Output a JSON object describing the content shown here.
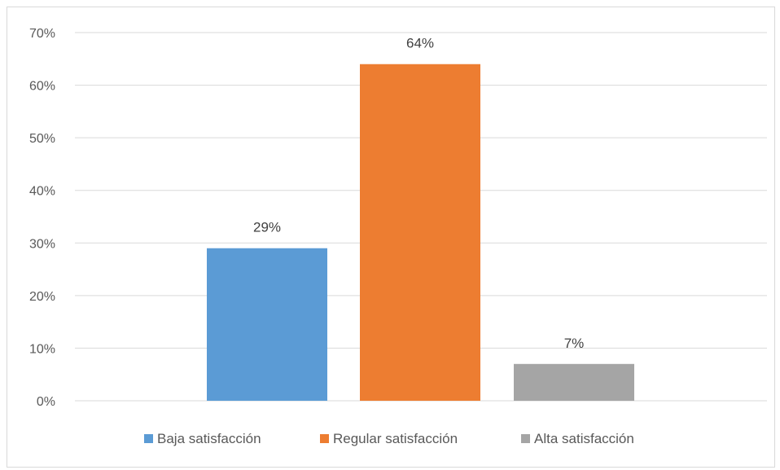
{
  "chart_data": {
    "type": "bar",
    "categories": [
      "Baja satisfacción",
      "Regular satisfacción",
      "Alta satisfacción"
    ],
    "values": [
      29,
      64,
      7
    ],
    "data_labels": [
      "29%",
      "64%",
      "7%"
    ],
    "colors": [
      "#5b9bd5",
      "#ed7d31",
      "#a5a5a5"
    ],
    "ylim": [
      0,
      70
    ],
    "y_ticks": [
      0,
      10,
      20,
      30,
      40,
      50,
      60,
      70
    ],
    "y_tick_labels": [
      "0%",
      "10%",
      "20%",
      "30%",
      "40%",
      "50%",
      "60%",
      "70%"
    ],
    "grid": true,
    "legend": {
      "position": "bottom",
      "entries": [
        "Baja satisfacción",
        "Regular satisfacción",
        "Alta satisfacción"
      ]
    },
    "title": "",
    "xlabel": "",
    "ylabel": ""
  }
}
